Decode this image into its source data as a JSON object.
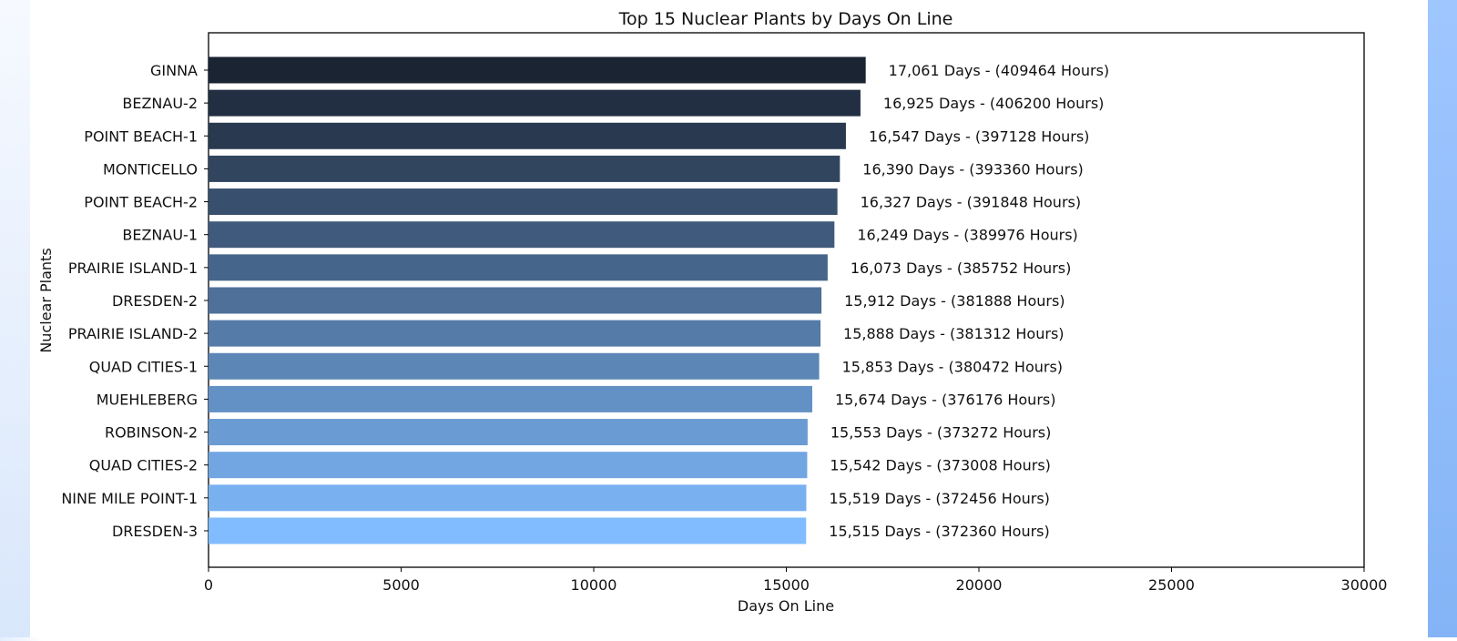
{
  "chart_data": {
    "type": "bar",
    "orientation": "horizontal",
    "title": "Top 15 Nuclear Plants by Days On Line",
    "xlabel": "Days On Line",
    "ylabel": "Nuclear Plants",
    "xlim": [
      0,
      30000
    ],
    "xticks": [
      "0",
      "5000",
      "10000",
      "15000",
      "20000",
      "25000",
      "30000"
    ],
    "grid": false,
    "categories": [
      "GINNA",
      "BEZNAU-2",
      "POINT BEACH-1",
      "MONTICELLO",
      "POINT BEACH-2",
      "BEZNAU-1",
      "PRAIRIE ISLAND-1",
      "DRESDEN-2",
      "PRAIRIE ISLAND-2",
      "QUAD CITIES-1",
      "MUEHLEBERG",
      "ROBINSON-2",
      "QUAD CITIES-2",
      "NINE MILE POINT-1",
      "DRESDEN-3"
    ],
    "values": [
      17061,
      16925,
      16547,
      16390,
      16327,
      16249,
      16073,
      15912,
      15888,
      15853,
      15674,
      15553,
      15542,
      15519,
      15515
    ],
    "data_labels": [
      "17,061 Days - (409464 Hours)",
      "16,925 Days - (406200 Hours)",
      "16,547 Days - (397128 Hours)",
      "16,390 Days - (393360 Hours)",
      "16,327 Days - (391848 Hours)",
      "16,249 Days - (389976 Hours)",
      "16,073 Days - (385752 Hours)",
      "15,912 Days - (381888 Hours)",
      "15,888 Days - (381312 Hours)",
      "15,853 Days - (380472 Hours)",
      "15,674 Days - (376176 Hours)",
      "15,553 Days - (373272 Hours)",
      "15,542 Days - (373008 Hours)",
      "15,519 Days - (372456 Hours)",
      "15,515 Days - (372360 Hours)"
    ],
    "colors": {
      "start": "#1b2433",
      "end": "#80bcff"
    }
  }
}
